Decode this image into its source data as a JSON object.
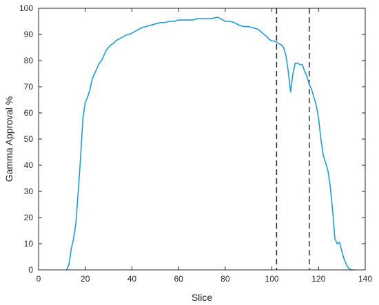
{
  "chart_data": {
    "type": "line",
    "title": "",
    "xlabel": "Slice",
    "ylabel": "Gamma Approval %",
    "xlim": [
      0,
      140
    ],
    "ylim": [
      0,
      100
    ],
    "xticks": [
      0,
      20,
      40,
      60,
      80,
      100,
      120,
      140
    ],
    "yticks": [
      0,
      10,
      20,
      30,
      40,
      50,
      60,
      70,
      80,
      90,
      100
    ],
    "grid": false,
    "series": [
      {
        "color": "#1f9bd0",
        "x": [
          12,
          13,
          14,
          15,
          16,
          17,
          18,
          19,
          20,
          21,
          22,
          23,
          24,
          25,
          26,
          27,
          28,
          29,
          30,
          31,
          32,
          33,
          34,
          35,
          36,
          37,
          38,
          39,
          40,
          42,
          44,
          46,
          48,
          50,
          52,
          54,
          56,
          58,
          60,
          62,
          64,
          66,
          68,
          70,
          72,
          74,
          76,
          77,
          78,
          80,
          82,
          84,
          86,
          88,
          90,
          92,
          94,
          96,
          98,
          99,
          100,
          101,
          102,
          103,
          104,
          105,
          106,
          107,
          108,
          109,
          110,
          111,
          112,
          113,
          114,
          115,
          116,
          117,
          118,
          119,
          120,
          121,
          122,
          123,
          124,
          125,
          126,
          127,
          128,
          129,
          130,
          131,
          132,
          133,
          134,
          135
        ],
        "y": [
          0,
          2,
          8,
          12,
          18,
          30,
          43,
          58,
          64,
          66,
          69,
          73,
          75,
          77,
          79,
          80,
          82,
          84,
          85,
          86,
          86.5,
          87.5,
          88,
          88.5,
          89,
          89.5,
          90,
          90,
          90.5,
          91.5,
          92.5,
          93,
          93.5,
          94,
          94.5,
          94.5,
          95,
          95,
          95.5,
          95.5,
          95.5,
          95.5,
          96,
          96,
          96,
          96,
          96.5,
          96.5,
          96,
          95,
          95,
          94.5,
          93.5,
          93,
          93,
          92.5,
          92,
          90.5,
          89,
          88,
          87.5,
          87.5,
          87,
          86.5,
          86,
          85,
          82,
          76,
          68,
          75,
          79,
          79,
          78.5,
          78.5,
          76,
          74,
          71,
          69,
          66,
          63,
          58,
          50,
          44,
          41,
          38,
          32,
          23,
          12,
          10,
          10.5,
          7,
          4,
          2,
          0.5,
          0,
          0
        ]
      }
    ],
    "vertical_lines": [
      {
        "x": 102,
        "style": "dashed",
        "color": "#262626"
      },
      {
        "x": 116,
        "style": "dashed",
        "color": "#262626"
      }
    ],
    "axis_color": "#262626",
    "background": "#ffffff"
  }
}
